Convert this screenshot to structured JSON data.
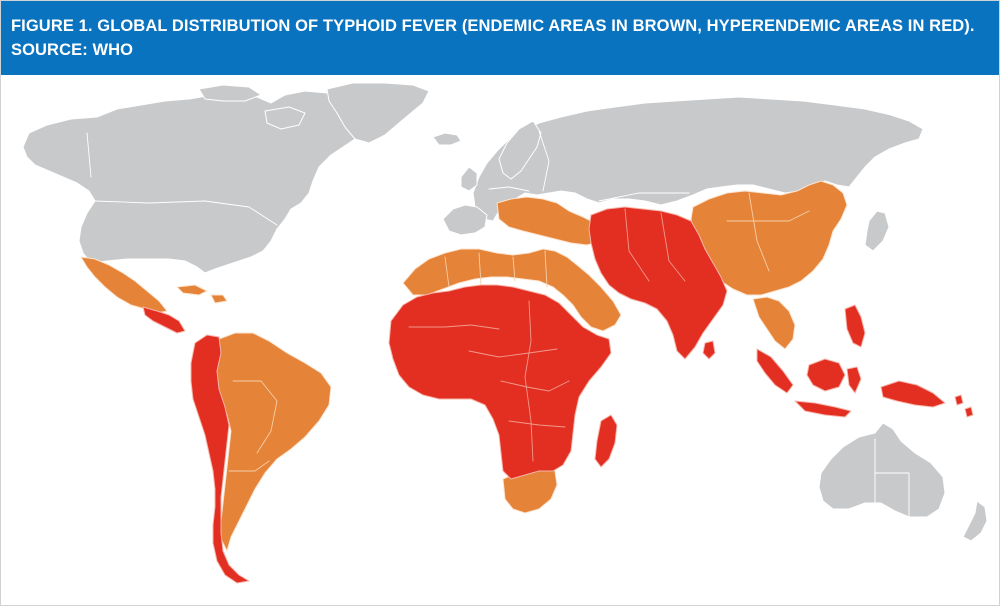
{
  "figure": {
    "caption": "FIGURE 1. GLOBAL DISTRIBUTION OF TYPHOID FEVER (ENDEMIC AREAS IN BROWN, HYPERENDEMIC AREAS IN RED). SOURCE: WHO"
  },
  "map": {
    "colors": {
      "header": "#0a73bf",
      "not_endemic": "#c8c9cb",
      "endemic": "#e58338",
      "hyperendemic": "#e22f22"
    }
  }
}
